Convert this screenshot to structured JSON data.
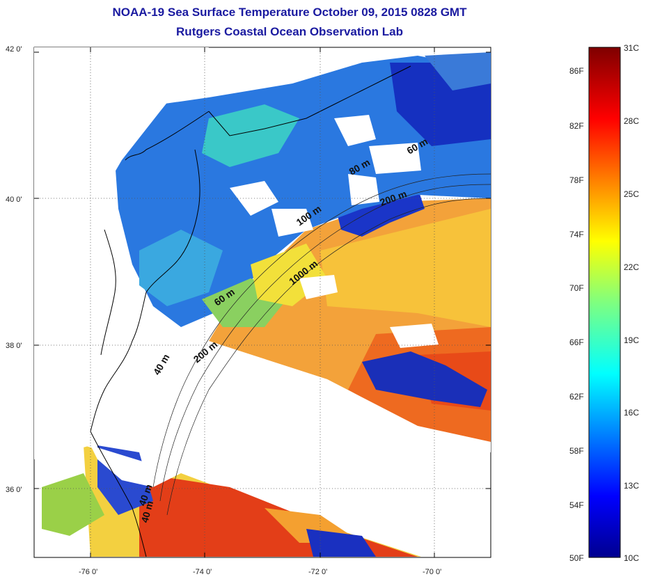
{
  "title": "NOAA-19 Sea Surface Temperature October 09, 2015 0828 GMT",
  "subtitle": "Rutgers Coastal Ocean Observation Lab",
  "map": {
    "lat_ticks": [
      "42 0'",
      "40 0'",
      "38 0'",
      "36 0'"
    ],
    "lon_ticks": [
      "-76 0'",
      "-74 0'",
      "-72 0'",
      "-70 0'"
    ],
    "isobaths": [
      "60 m",
      "80 m",
      "200 m",
      "100 m",
      "1000 m",
      "60 m",
      "200 m",
      "40 m",
      "40 m",
      "40 m"
    ],
    "colors": {
      "ocean_warm": "#f07a10",
      "ocean_hot": "#e03010",
      "ocean_mid": "#f0e040",
      "ocean_cool": "#30c0d0",
      "ocean_cold": "#1030d0",
      "land": "#ffffff",
      "coast": "#000000"
    }
  },
  "colorbar": {
    "fahrenheit": [
      "86F",
      "82F",
      "78F",
      "74F",
      "70F",
      "66F",
      "62F",
      "58F",
      "54F",
      "50F"
    ],
    "celsius": [
      "31C",
      "28C",
      "25C",
      "22C",
      "19C",
      "16C",
      "13C",
      "10C"
    ],
    "min_c": 10,
    "max_c": 31
  }
}
